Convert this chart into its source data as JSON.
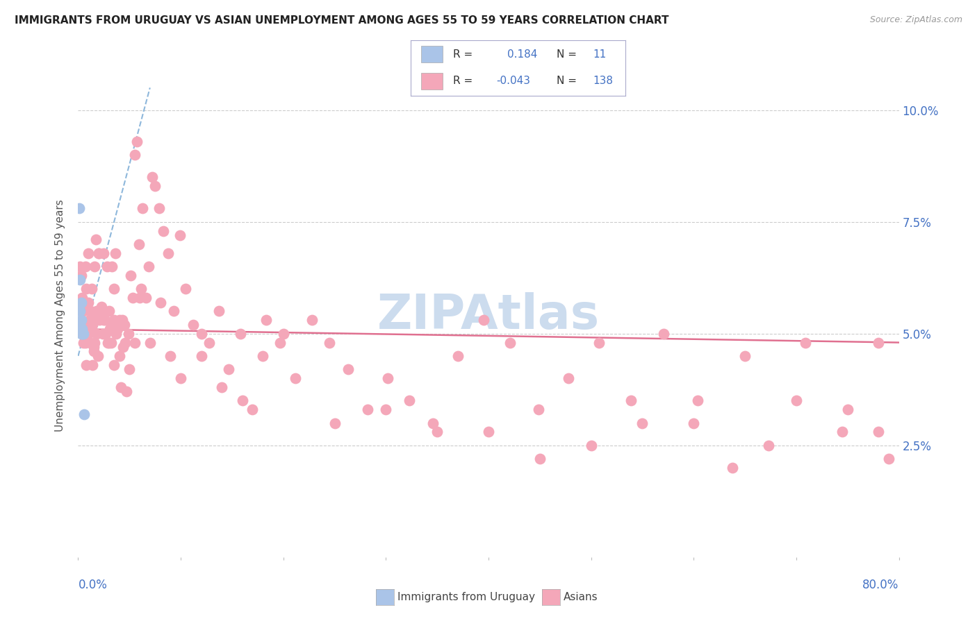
{
  "title": "IMMIGRANTS FROM URUGUAY VS ASIAN UNEMPLOYMENT AMONG AGES 55 TO 59 YEARS CORRELATION CHART",
  "source": "Source: ZipAtlas.com",
  "ylabel": "Unemployment Among Ages 55 to 59 years",
  "ytick_vals": [
    0.025,
    0.05,
    0.075,
    0.1
  ],
  "ytick_labels": [
    "2.5%",
    "5.0%",
    "7.5%",
    "10.0%"
  ],
  "xlim": [
    0.0,
    0.8
  ],
  "ylim": [
    0.0,
    0.108
  ],
  "legend_R_uruguay": "0.184",
  "legend_N_uruguay": "11",
  "legend_R_asians": "-0.043",
  "legend_N_asians": "138",
  "color_uruguay": "#aac4e8",
  "color_asians": "#f4a7b9",
  "color_trend_uruguay": "#82b0d8",
  "color_trend_asians": "#e07090",
  "color_axis_labels": "#4472c4",
  "color_title": "#222222",
  "color_grid": "#cccccc",
  "color_watermark": "#ccdcee",
  "uruguay_x": [
    0.001,
    0.002,
    0.002,
    0.002,
    0.003,
    0.003,
    0.003,
    0.004,
    0.004,
    0.005,
    0.006
  ],
  "uruguay_y": [
    0.078,
    0.062,
    0.055,
    0.052,
    0.057,
    0.053,
    0.05,
    0.051,
    0.05,
    0.05,
    0.032
  ],
  "asians_x": [
    0.002,
    0.003,
    0.004,
    0.005,
    0.005,
    0.006,
    0.007,
    0.007,
    0.008,
    0.009,
    0.01,
    0.01,
    0.011,
    0.012,
    0.012,
    0.013,
    0.014,
    0.015,
    0.015,
    0.016,
    0.017,
    0.018,
    0.019,
    0.02,
    0.021,
    0.022,
    0.023,
    0.024,
    0.025,
    0.026,
    0.027,
    0.028,
    0.029,
    0.03,
    0.031,
    0.032,
    0.033,
    0.034,
    0.035,
    0.036,
    0.037,
    0.038,
    0.04,
    0.041,
    0.042,
    0.043,
    0.044,
    0.046,
    0.047,
    0.049,
    0.051,
    0.053,
    0.055,
    0.057,
    0.059,
    0.061,
    0.063,
    0.066,
    0.069,
    0.072,
    0.075,
    0.079,
    0.083,
    0.088,
    0.093,
    0.099,
    0.105,
    0.112,
    0.12,
    0.128,
    0.137,
    0.147,
    0.158,
    0.17,
    0.183,
    0.197,
    0.212,
    0.228,
    0.245,
    0.263,
    0.282,
    0.302,
    0.323,
    0.346,
    0.37,
    0.395,
    0.421,
    0.449,
    0.478,
    0.508,
    0.539,
    0.571,
    0.604,
    0.638,
    0.673,
    0.709,
    0.745,
    0.78,
    0.008,
    0.01,
    0.012,
    0.014,
    0.016,
    0.018,
    0.02,
    0.025,
    0.03,
    0.035,
    0.04,
    0.045,
    0.05,
    0.06,
    0.07,
    0.08,
    0.09,
    0.1,
    0.12,
    0.14,
    0.16,
    0.18,
    0.2,
    0.25,
    0.3,
    0.35,
    0.4,
    0.45,
    0.5,
    0.55,
    0.6,
    0.65,
    0.7,
    0.75,
    0.78,
    0.79,
    0.015,
    0.025,
    0.035,
    0.055
  ],
  "asians_y": [
    0.065,
    0.063,
    0.058,
    0.055,
    0.048,
    0.052,
    0.065,
    0.048,
    0.06,
    0.05,
    0.068,
    0.05,
    0.053,
    0.051,
    0.048,
    0.06,
    0.052,
    0.053,
    0.046,
    0.048,
    0.071,
    0.055,
    0.045,
    0.068,
    0.053,
    0.054,
    0.056,
    0.05,
    0.068,
    0.053,
    0.05,
    0.065,
    0.048,
    0.055,
    0.051,
    0.048,
    0.065,
    0.052,
    0.053,
    0.068,
    0.05,
    0.051,
    0.045,
    0.052,
    0.038,
    0.053,
    0.047,
    0.048,
    0.037,
    0.05,
    0.063,
    0.058,
    0.09,
    0.093,
    0.07,
    0.06,
    0.078,
    0.058,
    0.065,
    0.085,
    0.083,
    0.078,
    0.073,
    0.068,
    0.055,
    0.072,
    0.06,
    0.052,
    0.045,
    0.048,
    0.055,
    0.042,
    0.05,
    0.033,
    0.053,
    0.048,
    0.04,
    0.053,
    0.048,
    0.042,
    0.033,
    0.04,
    0.035,
    0.03,
    0.045,
    0.053,
    0.048,
    0.033,
    0.04,
    0.048,
    0.035,
    0.05,
    0.035,
    0.02,
    0.025,
    0.048,
    0.028,
    0.028,
    0.043,
    0.057,
    0.055,
    0.043,
    0.065,
    0.05,
    0.068,
    0.053,
    0.048,
    0.06,
    0.053,
    0.052,
    0.042,
    0.058,
    0.048,
    0.057,
    0.045,
    0.04,
    0.05,
    0.038,
    0.035,
    0.045,
    0.05,
    0.03,
    0.033,
    0.028,
    0.028,
    0.022,
    0.025,
    0.03,
    0.03,
    0.045,
    0.035,
    0.033,
    0.048,
    0.022,
    0.047,
    0.055,
    0.043,
    0.048
  ]
}
